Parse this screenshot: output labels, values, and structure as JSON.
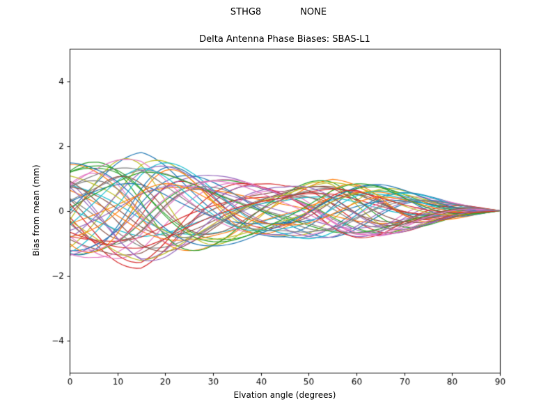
{
  "header": {
    "left": "STHG8",
    "right": "NONE"
  },
  "chart_data": {
    "type": "line",
    "title": "Delta Antenna Phase Biases: SBAS-L1",
    "xlabel": "Elvation angle (degrees)",
    "ylabel": "Bias from mean (mm)",
    "xlim": [
      0,
      90
    ],
    "ylim": [
      -5,
      5
    ],
    "xticks": [
      0,
      10,
      20,
      30,
      40,
      50,
      60,
      70,
      80,
      90
    ],
    "xtick_labels": [
      "0",
      "10",
      "20",
      "30",
      "40",
      "50",
      "60",
      "70",
      "80",
      "90"
    ],
    "yticks": [
      -4,
      -2,
      0,
      2,
      4
    ],
    "ytick_labels": [
      "−4",
      "−2",
      "0",
      "2",
      "4"
    ],
    "grid": false,
    "legend": "none",
    "x_sample_step": 1,
    "envelope_x": [
      0,
      5,
      10,
      15,
      20,
      25,
      30,
      35,
      40,
      45,
      50,
      55,
      60,
      65,
      70,
      75,
      80,
      85,
      90
    ],
    "envelope_y": [
      1.5,
      1.55,
      1.7,
      1.8,
      1.6,
      1.35,
      1.15,
      1.0,
      0.85,
      0.8,
      0.92,
      1.02,
      0.97,
      0.85,
      0.65,
      0.45,
      0.28,
      0.13,
      0.0
    ],
    "series_model": "y(x) = amp * envelope(x) * cos(2*pi*x/period + phase); all curves converge to 0 mm at 90 degrees elevation",
    "colors": [
      "#1f77b4",
      "#ff7f0e",
      "#2ca02c",
      "#d62728",
      "#9467bd",
      "#8c564b",
      "#e377c2",
      "#7f7f7f",
      "#bcbd22",
      "#17becf"
    ],
    "series": [
      {
        "amp": 1.0,
        "period": 60,
        "phase": 4.71
      },
      {
        "amp": 0.95,
        "period": 55,
        "phase": 0.0
      },
      {
        "amp": 0.9,
        "period": 70,
        "phase": 3.14
      },
      {
        "amp": 1.0,
        "period": 58,
        "phase": 1.7
      },
      {
        "amp": 0.85,
        "period": 45,
        "phase": 0.8
      },
      {
        "amp": 0.8,
        "period": 80,
        "phase": 2.4
      },
      {
        "amp": 0.75,
        "period": 38,
        "phase": 5.5
      },
      {
        "amp": 0.7,
        "period": 65,
        "phase": 1.2
      },
      {
        "amp": 0.95,
        "period": 50,
        "phase": 3.8
      },
      {
        "amp": 0.6,
        "period": 72,
        "phase": 0.5
      },
      {
        "amp": 0.9,
        "period": 42,
        "phase": 2.9
      },
      {
        "amp": 0.55,
        "period": 88,
        "phase": 4.2
      },
      {
        "amp": 0.85,
        "period": 62,
        "phase": 5.9
      },
      {
        "amp": 0.65,
        "period": 35,
        "phase": 1.9
      },
      {
        "amp": 0.98,
        "period": 75,
        "phase": 3.5
      },
      {
        "amp": 0.5,
        "period": 48,
        "phase": 0.2
      },
      {
        "amp": 0.88,
        "period": 57,
        "phase": 2.2
      },
      {
        "amp": 0.72,
        "period": 90,
        "phase": 5.0
      },
      {
        "amp": 0.93,
        "period": 40,
        "phase": 4.5
      },
      {
        "amp": 0.45,
        "period": 66,
        "phase": 1.5
      },
      {
        "amp": 0.82,
        "period": 53,
        "phase": 3.1
      },
      {
        "amp": 0.68,
        "period": 78,
        "phase": 0.9
      },
      {
        "amp": 0.97,
        "period": 47,
        "phase": 5.7
      },
      {
        "amp": 0.58,
        "period": 84,
        "phase": 2.7
      },
      {
        "amp": 0.87,
        "period": 59,
        "phase": 4.0
      },
      {
        "amp": 0.52,
        "period": 33,
        "phase": 1.1
      },
      {
        "amp": 0.92,
        "period": 68,
        "phase": 5.3
      },
      {
        "amp": 0.63,
        "period": 44,
        "phase": 2.0
      },
      {
        "amp": 0.78,
        "period": 74,
        "phase": 0.4
      },
      {
        "amp": 0.96,
        "period": 52,
        "phase": 3.6
      },
      {
        "amp": 0.48,
        "period": 61,
        "phase": 5.1
      },
      {
        "amp": 0.84,
        "period": 37,
        "phase": 2.5
      },
      {
        "amp": 0.7,
        "period": 82,
        "phase": 4.8
      },
      {
        "amp": 0.9,
        "period": 49,
        "phase": 1.4
      },
      {
        "amp": 0.56,
        "period": 70,
        "phase": 3.9
      },
      {
        "amp": 0.8,
        "period": 56,
        "phase": 0.7
      },
      {
        "amp": 0.94,
        "period": 64,
        "phase": 2.8
      },
      {
        "amp": 0.6,
        "period": 41,
        "phase": 5.6
      },
      {
        "amp": 0.86,
        "period": 76,
        "phase": 1.8
      },
      {
        "amp": 0.74,
        "period": 51,
        "phase": 4.3
      },
      {
        "amp": 0.99,
        "period": 69,
        "phase": 0.1
      },
      {
        "amp": 0.54,
        "period": 46,
        "phase": 3.3
      },
      {
        "amp": 0.89,
        "period": 58,
        "phase": 5.8
      },
      {
        "amp": 0.66,
        "period": 86,
        "phase": 2.3
      },
      {
        "amp": 0.91,
        "period": 54,
        "phase": 1.0
      },
      {
        "amp": 0.62,
        "period": 39,
        "phase": 4.6
      },
      {
        "amp": 0.83,
        "period": 63,
        "phase": 3.0
      },
      {
        "amp": 0.77,
        "period": 71,
        "phase": 5.4
      }
    ]
  }
}
